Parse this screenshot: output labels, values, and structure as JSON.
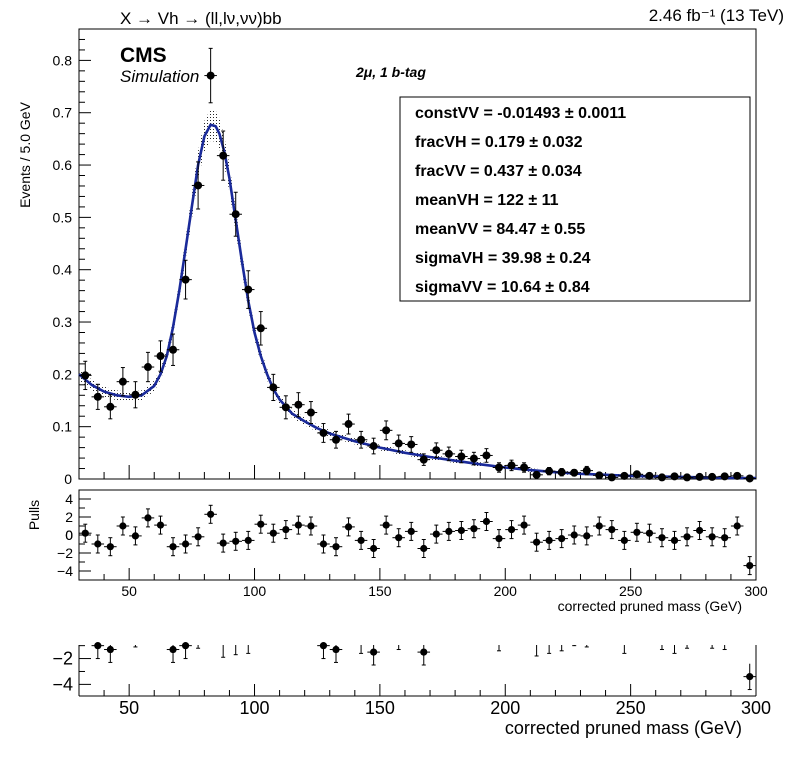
{
  "header": {
    "process": "X → Vh → (ll,lν,νν)bb",
    "lumi": "2.46 fb⁻¹  (13 TeV)",
    "cms": "CMS",
    "simulation": "Simulation",
    "channel": "2μ, 1 b-tag"
  },
  "fit_params": [
    "constVV = -0.01493 ± 0.0011",
    "fracVH =  0.179 ± 0.032",
    "fracVV =  0.437 ± 0.034",
    "meanVH =  122 ± 11",
    "meanVV =  84.47 ± 0.55",
    "sigmaVH =  39.98 ± 0.24",
    "sigmaVV =  10.64 ± 0.84"
  ],
  "chart_data": [
    {
      "type": "scatter",
      "panel": "main",
      "ylabel": "Events / 5.0 GeV",
      "xlim": [
        30,
        300
      ],
      "ylim": [
        0,
        0.86
      ],
      "yticks": [
        "0",
        "0.1",
        "0.2",
        "0.3",
        "0.4",
        "0.5",
        "0.6",
        "0.7",
        "0.8"
      ],
      "x": [
        32.5,
        37.5,
        42.5,
        47.5,
        52.5,
        57.5,
        62.5,
        67.5,
        72.5,
        77.5,
        82.5,
        87.5,
        92.5,
        97.5,
        102.5,
        107.5,
        112.5,
        117.5,
        122.5,
        127.5,
        132.5,
        137.5,
        142.5,
        147.5,
        152.5,
        157.5,
        162.5,
        167.5,
        172.5,
        177.5,
        182.5,
        187.5,
        192.5,
        197.5,
        202.5,
        207.5,
        212.5,
        217.5,
        222.5,
        227.5,
        232.5,
        237.5,
        242.5,
        247.5,
        252.5,
        257.5,
        262.5,
        267.5,
        272.5,
        277.5,
        282.5,
        287.5,
        292.5,
        297.5
      ],
      "y": [
        0.198,
        0.157,
        0.138,
        0.186,
        0.161,
        0.214,
        0.235,
        0.247,
        0.381,
        0.561,
        0.771,
        0.618,
        0.506,
        0.362,
        0.288,
        0.175,
        0.137,
        0.142,
        0.127,
        0.088,
        0.075,
        0.105,
        0.075,
        0.063,
        0.093,
        0.068,
        0.066,
        0.037,
        0.055,
        0.048,
        0.043,
        0.039,
        0.045,
        0.022,
        0.026,
        0.022,
        0.008,
        0.015,
        0.013,
        0.012,
        0.016,
        0.007,
        0.003,
        0.006,
        0.009,
        0.006,
        0.003,
        0.005,
        0.003,
        0.004,
        0.004,
        0.005,
        0.006,
        0.001
      ],
      "yerr": [
        0.027,
        0.024,
        0.023,
        0.027,
        0.025,
        0.028,
        0.029,
        0.03,
        0.037,
        0.045,
        0.052,
        0.047,
        0.042,
        0.036,
        0.032,
        0.025,
        0.022,
        0.023,
        0.021,
        0.018,
        0.016,
        0.019,
        0.016,
        0.015,
        0.018,
        0.016,
        0.015,
        0.011,
        0.014,
        0.013,
        0.012,
        0.012,
        0.013,
        0.009,
        0.01,
        0.009,
        0.005,
        0.007,
        0.007,
        0.006,
        0.008,
        0.005,
        0.003,
        0.004,
        0.005,
        0.004,
        0.003,
        0.004,
        0.003,
        0.003,
        0.003,
        0.004,
        0.004,
        0.001
      ],
      "fit_curve": {
        "x": [
          30,
          35,
          40,
          45,
          50,
          55,
          60,
          62.5,
          65,
          67.5,
          70,
          72.5,
          75,
          77.5,
          80,
          82.5,
          84.5,
          86,
          88,
          90,
          92.5,
          95,
          97.5,
          100,
          102.5,
          105,
          107.5,
          110,
          115,
          120,
          125,
          130,
          140,
          150,
          160,
          170,
          180,
          190,
          200,
          210,
          220,
          230,
          240,
          250,
          260,
          270,
          280,
          290,
          300
        ],
        "y": [
          0.2,
          0.18,
          0.167,
          0.16,
          0.157,
          0.16,
          0.178,
          0.2,
          0.235,
          0.29,
          0.36,
          0.44,
          0.52,
          0.6,
          0.655,
          0.677,
          0.674,
          0.66,
          0.625,
          0.575,
          0.495,
          0.415,
          0.34,
          0.28,
          0.235,
          0.2,
          0.172,
          0.152,
          0.125,
          0.11,
          0.097,
          0.087,
          0.072,
          0.06,
          0.05,
          0.042,
          0.035,
          0.028,
          0.022,
          0.017,
          0.013,
          0.01,
          0.008,
          0.006,
          0.005,
          0.004,
          0.003,
          0.002,
          0.002
        ]
      }
    },
    {
      "type": "scatter",
      "panel": "pulls",
      "ylabel": "Pulls",
      "xlabel": "corrected pruned mass (GeV)",
      "xlim": [
        30,
        300
      ],
      "ylim": [
        -5,
        5
      ],
      "yticks": [
        "4",
        "2",
        "0",
        "−2",
        "−4"
      ],
      "xticks": [
        "50",
        "100",
        "150",
        "200",
        "250",
        "300"
      ],
      "x": [
        32.5,
        37.5,
        42.5,
        47.5,
        52.5,
        57.5,
        62.5,
        67.5,
        72.5,
        77.5,
        82.5,
        87.5,
        92.5,
        97.5,
        102.5,
        107.5,
        112.5,
        117.5,
        122.5,
        127.5,
        132.5,
        137.5,
        142.5,
        147.5,
        152.5,
        157.5,
        162.5,
        167.5,
        172.5,
        177.5,
        182.5,
        187.5,
        192.5,
        197.5,
        202.5,
        207.5,
        212.5,
        217.5,
        222.5,
        227.5,
        232.5,
        237.5,
        242.5,
        247.5,
        252.5,
        257.5,
        262.5,
        267.5,
        272.5,
        277.5,
        282.5,
        287.5,
        292.5,
        297.5
      ],
      "y": [
        0.2,
        -1,
        -1.3,
        1,
        -0.1,
        1.9,
        1.1,
        -1.3,
        -1,
        -0.2,
        2.3,
        -0.9,
        -0.7,
        -0.6,
        1.2,
        0.2,
        0.6,
        1.1,
        1,
        -1,
        -1.3,
        0.9,
        -0.6,
        -1.5,
        1.1,
        -0.3,
        0.4,
        -1.5,
        0.1,
        0.4,
        0.5,
        0.7,
        1.5,
        -0.4,
        0.6,
        1.1,
        -0.8,
        -0.6,
        -0.4,
        0,
        -0.1,
        1,
        0.6,
        -0.6,
        0.3,
        0.2,
        -0.3,
        -0.6,
        -0.2,
        0.5,
        -0.2,
        -0.3,
        1,
        -3.4
      ],
      "yerr": [
        1,
        1,
        1,
        1,
        1,
        1,
        1,
        1,
        1,
        1,
        1,
        1,
        1,
        1,
        1,
        1,
        1,
        1,
        1,
        1,
        1,
        1,
        1,
        1,
        1,
        1,
        1,
        1,
        1,
        1,
        1,
        1,
        1,
        1,
        1,
        1,
        1,
        1,
        1,
        1,
        1,
        1,
        1,
        1,
        1,
        1,
        1,
        1,
        1,
        1,
        1,
        1,
        1,
        1
      ]
    },
    {
      "type": "scatter",
      "panel": "pulls-clipped",
      "xlabel": "corrected pruned mass (GeV)",
      "xlim": [
        30,
        300
      ],
      "ylim": [
        -4.9,
        -0.95
      ],
      "yticks": [
        "−2",
        "−4"
      ],
      "xticks": [
        "50",
        "100",
        "150",
        "200",
        "250",
        "300"
      ]
    }
  ]
}
